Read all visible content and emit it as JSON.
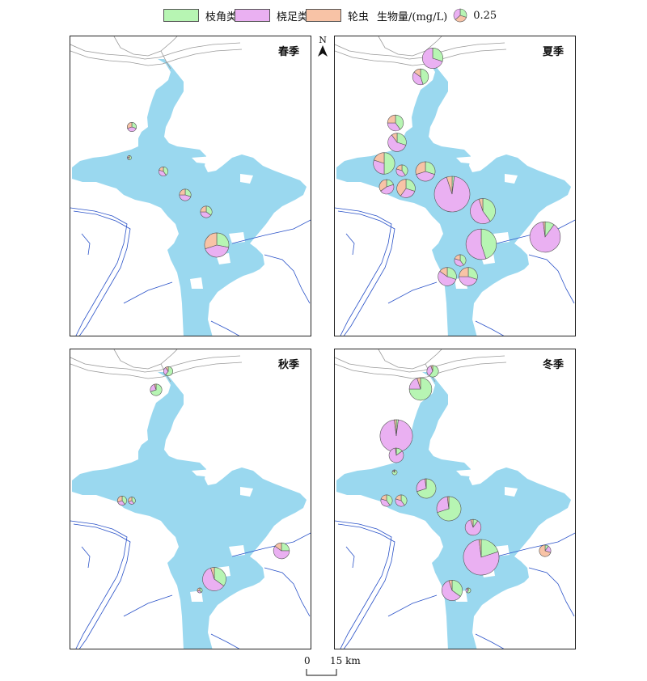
{
  "colors": {
    "water": "#9ad8ef",
    "river": "#2a52c8",
    "coast": "#999999",
    "cladocera": "#b7f5b3",
    "copepoda": "#eab0f2",
    "rotifera": "#f8c3a6",
    "pie_stroke": "#555555"
  },
  "legend": {
    "cladocera": "枝角类",
    "copepoda": "桡足类",
    "rotifera": "轮虫",
    "biomass_label": "生物量/(mg/L)",
    "reference_value": "0.25"
  },
  "north_label": "N",
  "scale": {
    "zero": "0",
    "distance": "15 km"
  },
  "seasons": [
    {
      "name": "春季",
      "sites": [
        {
          "clad": 0.3,
          "cope": 0.4,
          "roti": 0.3,
          "size": 0.1
        },
        {
          "clad": 0.6,
          "cope": 0.2,
          "roti": 0.2,
          "size": 0.02
        },
        {
          "clad": 0.4,
          "cope": 0.4,
          "roti": 0.2,
          "size": 0.1
        },
        {
          "clad": 0.3,
          "cope": 0.45,
          "roti": 0.25,
          "size": 0.16
        },
        {
          "clad": 0.35,
          "cope": 0.4,
          "roti": 0.25,
          "size": 0.16
        },
        {
          "clad": 0.28,
          "cope": 0.42,
          "roti": 0.3,
          "size": 0.7
        }
      ]
    },
    {
      "name": "夏季",
      "sites": [
        {
          "clad": 0.3,
          "cope": 0.7,
          "roti": 0.0,
          "size": 0.5
        },
        {
          "clad": 0.45,
          "cope": 0.4,
          "roti": 0.15,
          "size": 0.3
        },
        {
          "clad": 0.4,
          "cope": 0.35,
          "roti": 0.25,
          "size": 0.3
        },
        {
          "clad": 0.3,
          "cope": 0.6,
          "roti": 0.1,
          "size": 0.4
        },
        {
          "clad": 0.5,
          "cope": 0.3,
          "roti": 0.2,
          "size": 0.55
        },
        {
          "clad": 0.4,
          "cope": 0.4,
          "roti": 0.2,
          "size": 0.16
        },
        {
          "clad": 0.2,
          "cope": 0.45,
          "roti": 0.35,
          "size": 0.25
        },
        {
          "clad": 0.3,
          "cope": 0.3,
          "roti": 0.4,
          "size": 0.4
        },
        {
          "clad": 0.3,
          "cope": 0.4,
          "roti": 0.3,
          "size": 0.45
        },
        {
          "clad": 0.02,
          "cope": 0.93,
          "roti": 0.05,
          "size": 1.5
        },
        {
          "clad": 0.4,
          "cope": 0.55,
          "roti": 0.05,
          "size": 0.75
        },
        {
          "clad": 0.45,
          "cope": 0.55,
          "roti": 0.0,
          "size": 1.1
        },
        {
          "clad": 0.1,
          "cope": 0.88,
          "roti": 0.02,
          "size": 1.1
        },
        {
          "clad": 0.4,
          "cope": 0.4,
          "roti": 0.2,
          "size": 0.16
        },
        {
          "clad": 0.3,
          "cope": 0.55,
          "roti": 0.15,
          "size": 0.4
        },
        {
          "clad": 0.3,
          "cope": 0.45,
          "roti": 0.25,
          "size": 0.4
        }
      ]
    },
    {
      "name": "秋季",
      "sites": [
        {
          "clad": 0.6,
          "cope": 0.3,
          "roti": 0.1,
          "size": 0.1
        },
        {
          "clad": 0.7,
          "cope": 0.25,
          "roti": 0.05,
          "size": 0.16
        },
        {
          "clad": 0.4,
          "cope": 0.3,
          "roti": 0.3,
          "size": 0.1
        },
        {
          "clad": 0.4,
          "cope": 0.3,
          "roti": 0.3,
          "size": 0.06
        },
        {
          "clad": 0.25,
          "cope": 0.6,
          "roti": 0.15,
          "size": 0.3
        },
        {
          "clad": 0.35,
          "cope": 0.6,
          "roti": 0.05,
          "size": 0.65
        },
        {
          "clad": 0.4,
          "cope": 0.3,
          "roti": 0.3,
          "size": 0.03
        }
      ]
    },
    {
      "name": "冬季",
      "sites": [
        {
          "clad": 0.6,
          "cope": 0.35,
          "roti": 0.05,
          "size": 0.16
        },
        {
          "clad": 0.75,
          "cope": 0.2,
          "roti": 0.05,
          "size": 0.6
        },
        {
          "clad": 0.02,
          "cope": 0.96,
          "roti": 0.02,
          "size": 1.25
        },
        {
          "clad": 0.15,
          "cope": 0.83,
          "roti": 0.02,
          "size": 0.25
        },
        {
          "clad": 0.85,
          "cope": 0.1,
          "roti": 0.05,
          "size": 0.03
        },
        {
          "clad": 0.4,
          "cope": 0.4,
          "roti": 0.2,
          "size": 0.16
        },
        {
          "clad": 0.4,
          "cope": 0.4,
          "roti": 0.2,
          "size": 0.16
        },
        {
          "clad": 0.7,
          "cope": 0.28,
          "roti": 0.02,
          "size": 0.45
        },
        {
          "clad": 0.7,
          "cope": 0.28,
          "roti": 0.02,
          "size": 0.7
        },
        {
          "clad": 0.1,
          "cope": 0.85,
          "roti": 0.05,
          "size": 0.3
        },
        {
          "clad": 0.2,
          "cope": 0.78,
          "roti": 0.02,
          "size": 1.5
        },
        {
          "clad": 0.1,
          "cope": 0.2,
          "roti": 0.7,
          "size": 0.16
        },
        {
          "clad": 0.35,
          "cope": 0.6,
          "roti": 0.05,
          "size": 0.5
        },
        {
          "clad": 0.6,
          "cope": 0.3,
          "roti": 0.1,
          "size": 0.03
        }
      ]
    }
  ]
}
